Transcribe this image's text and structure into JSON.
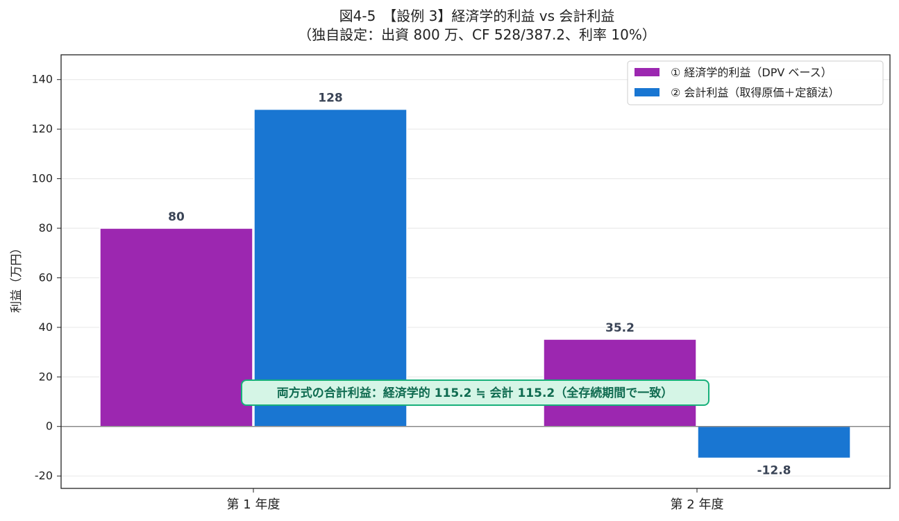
{
  "chart_data": {
    "type": "bar",
    "title": "図4-5　【設例 3】経済学的利益 vs 会計利益",
    "subtitle": "（独自設定：出資 800 万、CF 528/387.2、利率 10%）",
    "xlabel": "",
    "ylabel": "利益（万円）",
    "ylim": [
      -25,
      150
    ],
    "yticks": [
      -20,
      0,
      20,
      40,
      60,
      80,
      100,
      120,
      140
    ],
    "categories": [
      "第 1 年度",
      "第 2 年度"
    ],
    "series": [
      {
        "name": "① 経済学的利益（DPV ベース）",
        "values": [
          80,
          35.2
        ],
        "labels": [
          "80",
          "35.2"
        ],
        "color": "#9c27b0"
      },
      {
        "name": "② 会計利益（取得原価＋定額法）",
        "values": [
          128,
          -12.8
        ],
        "labels": [
          "128",
          "-12.8"
        ],
        "color": "#1976d2"
      }
    ],
    "grid": "horizontal",
    "legend_position": "top-right",
    "annotation": "両方式の合計利益：経済学的 115.2 ≒ 会計 115.2（全存続期間で一致）",
    "annotation_colors": {
      "fill": "#d5f5e6",
      "border": "#17b07a",
      "text": "#0f6b50"
    },
    "label_color": "#3a4456"
  }
}
